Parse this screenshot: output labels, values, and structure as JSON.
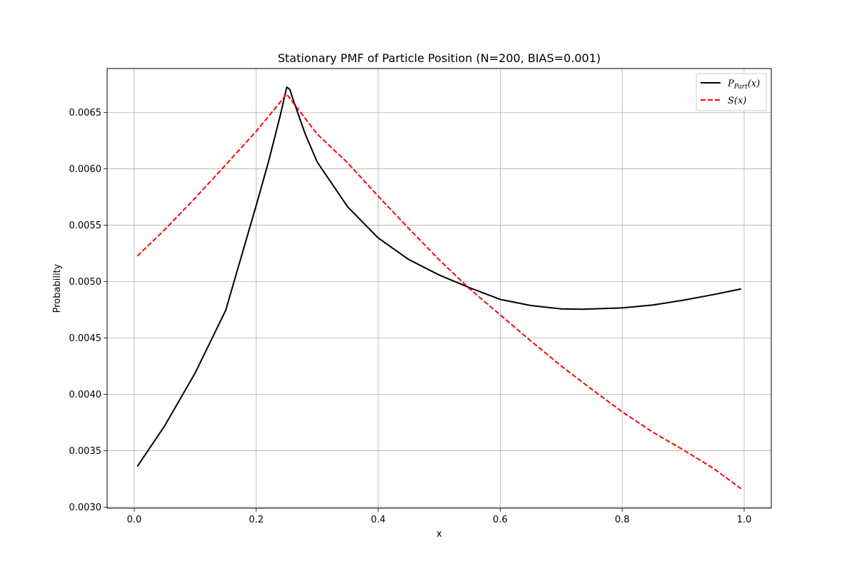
{
  "chart_data": {
    "type": "line",
    "title": "Stationary PMF of Particle Position (N=200, BIAS=0.001)",
    "xlabel": "x",
    "ylabel": "Probability",
    "xlim": [
      -0.0445,
      1.0445
    ],
    "ylim": [
      0.00299,
      0.00689
    ],
    "xticks": [
      0.0,
      0.2,
      0.4,
      0.6,
      0.8,
      1.0
    ],
    "xtick_labels": [
      "0.0",
      "0.2",
      "0.4",
      "0.6",
      "0.8",
      "1.0"
    ],
    "yticks": [
      0.003,
      0.0035,
      0.004,
      0.0045,
      0.005,
      0.0055,
      0.006,
      0.0065
    ],
    "ytick_labels": [
      "0.0030",
      "0.0035",
      "0.0040",
      "0.0045",
      "0.0050",
      "0.0055",
      "0.0060",
      "0.0065"
    ],
    "grid": true,
    "legend_position": "top-right",
    "series": [
      {
        "name": "P_Part(x)",
        "legend_main": "P",
        "legend_sub": "Part",
        "legend_tail": "(x)",
        "color": "#000000",
        "dash": "solid",
        "x": [
          0.005,
          0.05,
          0.1,
          0.15,
          0.2,
          0.22,
          0.24,
          0.25,
          0.255,
          0.26,
          0.28,
          0.3,
          0.35,
          0.4,
          0.45,
          0.5,
          0.55,
          0.6,
          0.65,
          0.7,
          0.735,
          0.8,
          0.85,
          0.9,
          0.95,
          0.995
        ],
        "y": [
          0.00336,
          0.003722,
          0.004191,
          0.004746,
          0.005677,
          0.006061,
          0.006487,
          0.006725,
          0.006705,
          0.006622,
          0.006313,
          0.00606,
          0.005662,
          0.005387,
          0.005196,
          0.005058,
          0.004945,
          0.004842,
          0.004788,
          0.004758,
          0.004755,
          0.004767,
          0.004792,
          0.004835,
          0.004885,
          0.004935
        ]
      },
      {
        "name": "S(x)",
        "legend_main": "S",
        "legend_sub": "",
        "legend_tail": "(x)",
        "color": "#ff0000",
        "dash": "dashed",
        "x": [
          0.005,
          0.05,
          0.1,
          0.15,
          0.2,
          0.25,
          0.3,
          0.35,
          0.4,
          0.45,
          0.5,
          0.55,
          0.6,
          0.65,
          0.7,
          0.75,
          0.8,
          0.85,
          0.9,
          0.95,
          0.995
        ],
        "y": [
          0.005227,
          0.00546,
          0.005742,
          0.006036,
          0.006333,
          0.006662,
          0.006308,
          0.006053,
          0.005757,
          0.005472,
          0.005193,
          0.004935,
          0.004705,
          0.004475,
          0.004252,
          0.004045,
          0.003845,
          0.003665,
          0.003508,
          0.003342,
          0.003163
        ]
      }
    ]
  }
}
